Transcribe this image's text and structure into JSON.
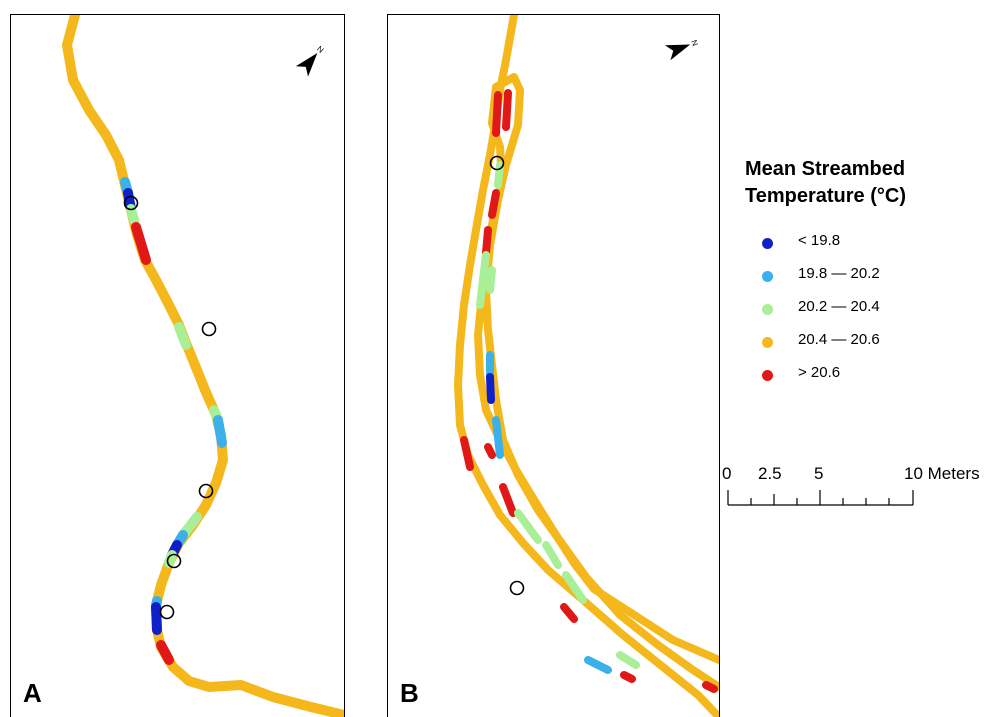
{
  "panels": [
    {
      "label": "A",
      "north_glyph": "N"
    },
    {
      "label": "B",
      "north_glyph": "N"
    }
  ],
  "legend": {
    "title_line1": "Mean Streambed",
    "title_line2": "Temperature (°C)",
    "classes": [
      {
        "label": "< 19.8",
        "color": "#1020c8"
      },
      {
        "label": "19.8 — 20.2",
        "color": "#3cb0e8"
      },
      {
        "label": "20.2 — 20.4",
        "color": "#a8ef98"
      },
      {
        "label": "20.4 — 20.6",
        "color": "#f5b81c"
      },
      {
        "label": "> 20.6",
        "color": "#e01818"
      }
    ]
  },
  "scalebar": {
    "labels": [
      "0",
      "2.5",
      "5",
      "10 Meters"
    ],
    "max_meters": 10
  },
  "colors": {
    "stream": "#f5b81c",
    "frame": "#000000",
    "sample_marker_stroke": "#000000"
  }
}
